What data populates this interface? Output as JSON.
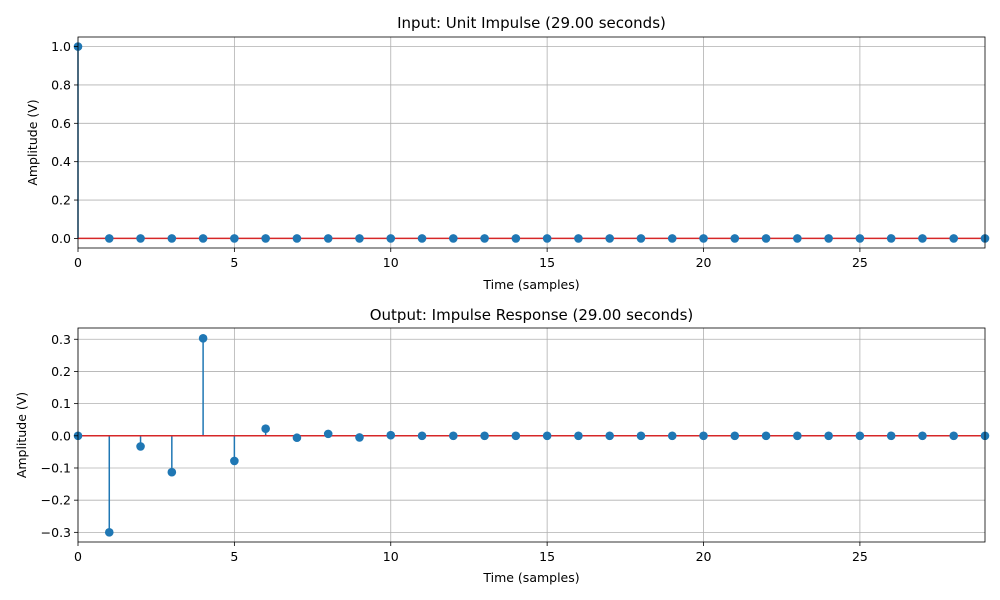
{
  "chart_data": [
    {
      "type": "stem",
      "title": "Input: Unit Impulse (29.00 seconds)",
      "xlabel": "Time (samples)",
      "ylabel": "Amplitude (V)",
      "xlim": [
        0,
        29
      ],
      "ylim": [
        -0.05,
        1.05
      ],
      "xticks": [
        0,
        5,
        10,
        15,
        20,
        25
      ],
      "yticks": [
        0.0,
        0.2,
        0.4,
        0.6,
        0.8,
        1.0
      ],
      "ytick_labels": [
        "0.0",
        "0.2",
        "0.4",
        "0.6",
        "0.8",
        "1.0"
      ],
      "grid": true,
      "baseline": 0,
      "colors": {
        "stem": "#1f77b4",
        "baseline": "#d62728"
      },
      "x": [
        0,
        1,
        2,
        3,
        4,
        5,
        6,
        7,
        8,
        9,
        10,
        11,
        12,
        13,
        14,
        15,
        16,
        17,
        18,
        19,
        20,
        21,
        22,
        23,
        24,
        25,
        26,
        27,
        28,
        29
      ],
      "values": [
        1,
        0,
        0,
        0,
        0,
        0,
        0,
        0,
        0,
        0,
        0,
        0,
        0,
        0,
        0,
        0,
        0,
        0,
        0,
        0,
        0,
        0,
        0,
        0,
        0,
        0,
        0,
        0,
        0,
        0
      ]
    },
    {
      "type": "stem",
      "title": "Output: Impulse Response (29.00 seconds)",
      "xlabel": "Time (samples)",
      "ylabel": "Amplitude (V)",
      "xlim": [
        0,
        29
      ],
      "ylim": [
        -0.33,
        0.335
      ],
      "xticks": [
        0,
        5,
        10,
        15,
        20,
        25
      ],
      "yticks": [
        -0.3,
        -0.2,
        -0.1,
        0.0,
        0.1,
        0.2,
        0.3
      ],
      "ytick_labels": [
        "−0.3",
        "−0.2",
        "−0.1",
        "0.0",
        "0.1",
        "0.2",
        "0.3"
      ],
      "grid": true,
      "baseline": 0,
      "colors": {
        "stem": "#1f77b4",
        "baseline": "#d62728"
      },
      "x": [
        0,
        1,
        2,
        3,
        4,
        5,
        6,
        7,
        8,
        9,
        10,
        11,
        12,
        13,
        14,
        15,
        16,
        17,
        18,
        19,
        20,
        21,
        22,
        23,
        24,
        25,
        26,
        27,
        28,
        29
      ],
      "values": [
        0,
        -0.3,
        -0.033,
        -0.113,
        0.303,
        -0.078,
        0.022,
        -0.006,
        0.006,
        -0.005,
        0.002,
        0,
        0,
        0,
        0,
        0,
        0,
        0,
        0,
        0,
        0,
        0,
        0,
        0,
        0,
        0,
        0,
        0,
        0,
        0
      ]
    }
  ]
}
